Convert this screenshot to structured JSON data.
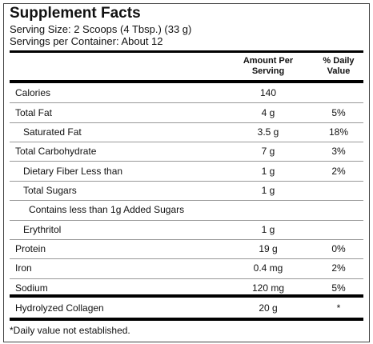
{
  "title": "Supplement Facts",
  "serving_size": "Serving Size: 2 Scoops (4 Tbsp.) (33 g)",
  "servings_per_container": "Servings per Container: About 12",
  "table": {
    "header": {
      "amount": "Amount Per Serving",
      "dv": "% Daily Value"
    },
    "rows": [
      {
        "label": "Calories",
        "amount": "140"
      },
      {
        "label": "Total Fat",
        "amount": "4 g",
        "dv": "5%"
      },
      {
        "label": "Saturated Fat",
        "amount": "3.5 g",
        "dv": "18%"
      },
      {
        "label": "Total Carbohydrate",
        "amount": "7 g",
        "dv": "3%"
      },
      {
        "label": "Dietary Fiber Less than",
        "amount": "1 g",
        "dv": "2%"
      },
      {
        "label": "Total Sugars",
        "amount": "1 g"
      },
      {
        "label": "Contains less than 1g Added Sugars"
      },
      {
        "label": "Erythritol",
        "amount": "1 g"
      },
      {
        "label": "Protein",
        "amount": "19 g",
        "dv": "0%"
      },
      {
        "label": "Iron",
        "amount": "0.4 mg",
        "dv": "2%"
      },
      {
        "label": "Sodium",
        "amount": "120 mg",
        "dv": "5%"
      },
      {
        "label": "Hydrolyzed Collagen",
        "amount": "20 g",
        "dv": "*"
      }
    ]
  },
  "footnote": "*Daily value not established."
}
